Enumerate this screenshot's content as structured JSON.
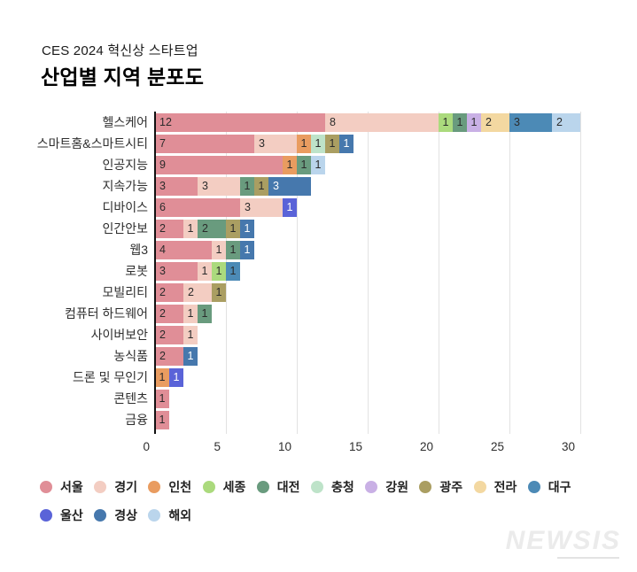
{
  "header": {
    "subtitle": "CES 2024 혁신상 스타트업",
    "title": "산업별 지역 분포도"
  },
  "watermark": "NEWSIS",
  "chart_data": {
    "type": "bar",
    "orientation": "horizontal",
    "stacked": true,
    "title": "산업별 지역 분포도",
    "xlabel": "",
    "ylabel": "",
    "xlim": [
      0,
      30
    ],
    "x_ticks": [
      0,
      5,
      10,
      15,
      20,
      25,
      30
    ],
    "grid": "vertical",
    "legend_position": "bottom",
    "regions": [
      {
        "name": "서울",
        "color": "#E08E97"
      },
      {
        "name": "경기",
        "color": "#F3CDC2"
      },
      {
        "name": "인천",
        "color": "#E99C60"
      },
      {
        "name": "세종",
        "color": "#ABDA7D"
      },
      {
        "name": "대전",
        "color": "#699B7E"
      },
      {
        "name": "충청",
        "color": "#BEE3C9"
      },
      {
        "name": "강원",
        "color": "#C9B0E5"
      },
      {
        "name": "광주",
        "color": "#AA9E62"
      },
      {
        "name": "전라",
        "color": "#F3D8A1"
      },
      {
        "name": "대구",
        "color": "#4C8AB6"
      },
      {
        "name": "울산",
        "color": "#5A63D8"
      },
      {
        "name": "경상",
        "color": "#4678AD"
      },
      {
        "name": "해외",
        "color": "#BAD5EC"
      }
    ],
    "light_text_regions": [
      "울산",
      "경상"
    ],
    "categories": [
      "헬스케어",
      "스마트홈&스마트시티",
      "인공지능",
      "지속가능",
      "디바이스",
      "인간안보",
      "웹3",
      "로봇",
      "모빌리티",
      "컴퓨터 하드웨어",
      "사이버보안",
      "농식품",
      "드론 및 무인기",
      "콘텐츠",
      "금융"
    ],
    "rows": [
      {
        "category": "헬스케어",
        "segments": [
          {
            "region": "서울",
            "value": 12
          },
          {
            "region": "경기",
            "value": 8
          },
          {
            "region": "세종",
            "value": 1
          },
          {
            "region": "대전",
            "value": 1
          },
          {
            "region": "강원",
            "value": 1
          },
          {
            "region": "전라",
            "value": 2
          },
          {
            "region": "대구",
            "value": 3
          },
          {
            "region": "해외",
            "value": 2
          }
        ]
      },
      {
        "category": "스마트홈&스마트시티",
        "segments": [
          {
            "region": "서울",
            "value": 7
          },
          {
            "region": "경기",
            "value": 3
          },
          {
            "region": "인천",
            "value": 1
          },
          {
            "region": "충청",
            "value": 1
          },
          {
            "region": "광주",
            "value": 1
          },
          {
            "region": "경상",
            "value": 1
          }
        ]
      },
      {
        "category": "인공지능",
        "segments": [
          {
            "region": "서울",
            "value": 9
          },
          {
            "region": "인천",
            "value": 1
          },
          {
            "region": "대전",
            "value": 1
          },
          {
            "region": "해외",
            "value": 1
          }
        ]
      },
      {
        "category": "지속가능",
        "segments": [
          {
            "region": "서울",
            "value": 3
          },
          {
            "region": "경기",
            "value": 3
          },
          {
            "region": "대전",
            "value": 1
          },
          {
            "region": "광주",
            "value": 1
          },
          {
            "region": "경상",
            "value": 3
          }
        ]
      },
      {
        "category": "디바이스",
        "segments": [
          {
            "region": "서울",
            "value": 6
          },
          {
            "region": "경기",
            "value": 3
          },
          {
            "region": "울산",
            "value": 1
          }
        ]
      },
      {
        "category": "인간안보",
        "segments": [
          {
            "region": "서울",
            "value": 2
          },
          {
            "region": "경기",
            "value": 1
          },
          {
            "region": "대전",
            "value": 2
          },
          {
            "region": "광주",
            "value": 1
          },
          {
            "region": "경상",
            "value": 1
          }
        ]
      },
      {
        "category": "웹3",
        "segments": [
          {
            "region": "서울",
            "value": 4
          },
          {
            "region": "경기",
            "value": 1
          },
          {
            "region": "대전",
            "value": 1
          },
          {
            "region": "경상",
            "value": 1
          }
        ]
      },
      {
        "category": "로봇",
        "segments": [
          {
            "region": "서울",
            "value": 3
          },
          {
            "region": "경기",
            "value": 1
          },
          {
            "region": "세종",
            "value": 1
          },
          {
            "region": "대구",
            "value": 1
          }
        ]
      },
      {
        "category": "모빌리티",
        "segments": [
          {
            "region": "서울",
            "value": 2
          },
          {
            "region": "경기",
            "value": 2
          },
          {
            "region": "광주",
            "value": 1
          }
        ]
      },
      {
        "category": "컴퓨터 하드웨어",
        "segments": [
          {
            "region": "서울",
            "value": 2
          },
          {
            "region": "경기",
            "value": 1
          },
          {
            "region": "대전",
            "value": 1
          }
        ]
      },
      {
        "category": "사이버보안",
        "segments": [
          {
            "region": "서울",
            "value": 2
          },
          {
            "region": "경기",
            "value": 1
          }
        ]
      },
      {
        "category": "농식품",
        "segments": [
          {
            "region": "서울",
            "value": 2
          },
          {
            "region": "경상",
            "value": 1
          }
        ]
      },
      {
        "category": "드론 및 무인기",
        "segments": [
          {
            "region": "인천",
            "value": 1
          },
          {
            "region": "울산",
            "value": 1
          }
        ]
      },
      {
        "category": "콘텐츠",
        "segments": [
          {
            "region": "서울",
            "value": 1
          }
        ]
      },
      {
        "category": "금융",
        "segments": [
          {
            "region": "서울",
            "value": 1
          }
        ]
      }
    ]
  }
}
